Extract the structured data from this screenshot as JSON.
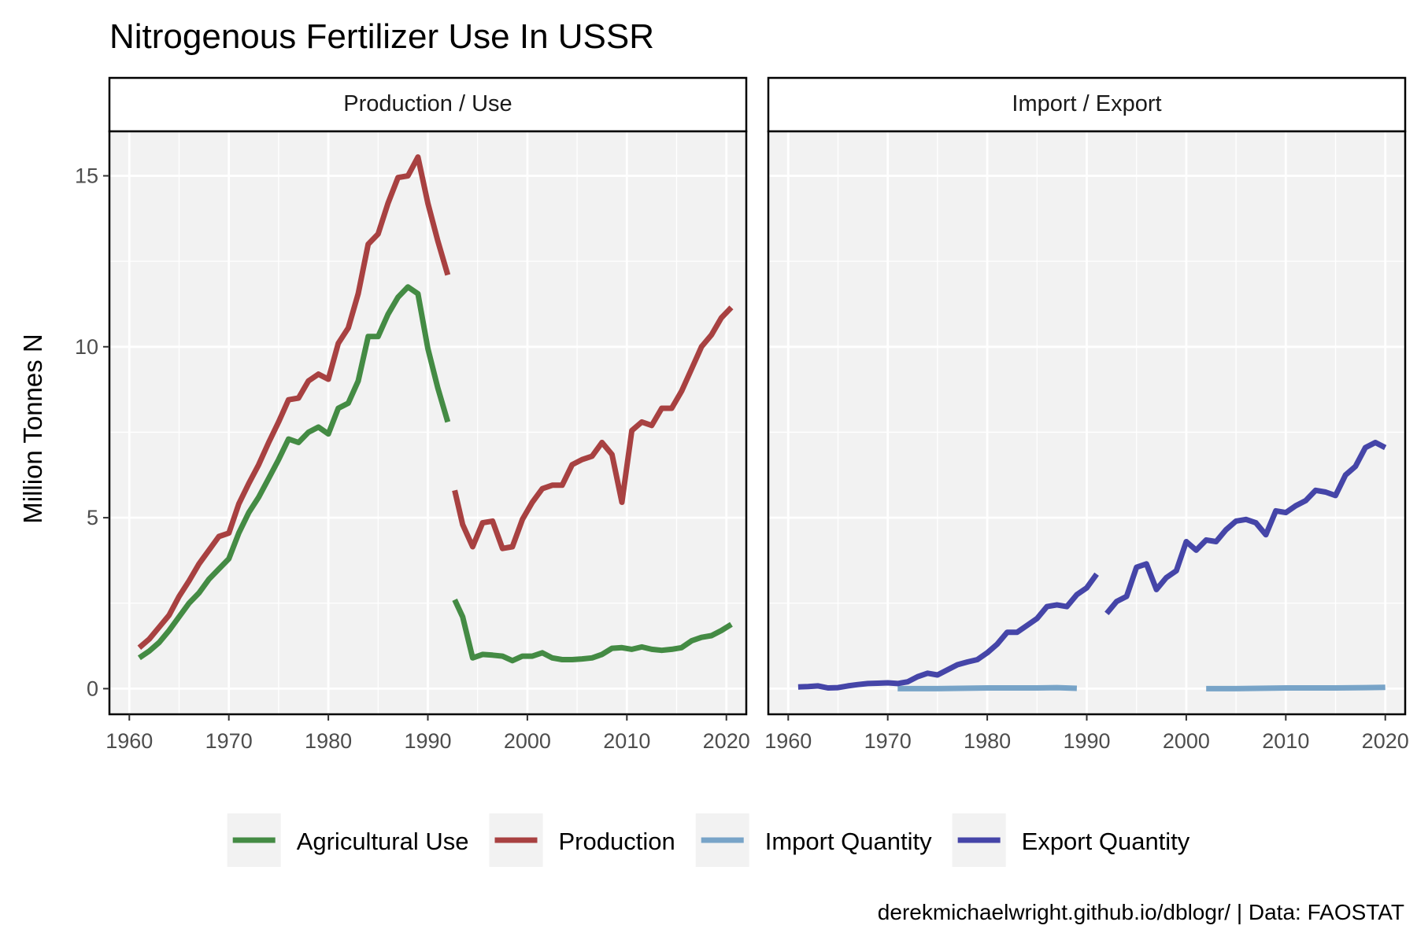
{
  "chart_data": {
    "type": "line",
    "title": "Nitrogenous Fertilizer Use In USSR",
    "ylabel": "Million Tonnes N",
    "xlabel": "",
    "caption": "derekmichaelwright.github.io/dblogr/ | Data: FAOSTAT",
    "xlim": [
      1958,
      2022
    ],
    "ylim": [
      -0.75,
      16.3
    ],
    "x_ticks": [
      1960,
      1970,
      1980,
      1990,
      2000,
      2010,
      2020
    ],
    "y_ticks": [
      0,
      5,
      10,
      15
    ],
    "grid": true,
    "legend_position": "bottom",
    "legend": [
      {
        "name": "Agricultural Use",
        "color": "#448b44"
      },
      {
        "name": "Production",
        "color": "#a84141"
      },
      {
        "name": "Import Quantity",
        "color": "#78a4c8"
      },
      {
        "name": "Export Quantity",
        "color": "#4545a8"
      }
    ],
    "panels": [
      {
        "strip": "Production / Use",
        "series": [
          {
            "name": "Agricultural Use",
            "color": "#448b44",
            "segments": [
              [
                [
                  1961,
                  0.9
                ],
                [
                  1962,
                  1.1
                ],
                [
                  1963,
                  1.35
                ],
                [
                  1964,
                  1.7
                ],
                [
                  1965,
                  2.1
                ],
                [
                  1966,
                  2.5
                ],
                [
                  1967,
                  2.8
                ],
                [
                  1968,
                  3.2
                ],
                [
                  1969,
                  3.5
                ],
                [
                  1970,
                  3.8
                ],
                [
                  1971,
                  4.55
                ],
                [
                  1972,
                  5.15
                ],
                [
                  1973,
                  5.6
                ],
                [
                  1974,
                  6.15
                ],
                [
                  1975,
                  6.7
                ],
                [
                  1976,
                  7.3
                ],
                [
                  1977,
                  7.2
                ],
                [
                  1978,
                  7.5
                ],
                [
                  1979,
                  7.65
                ],
                [
                  1980,
                  7.45
                ],
                [
                  1981,
                  8.2
                ],
                [
                  1982,
                  8.35
                ],
                [
                  1983,
                  9.0
                ],
                [
                  1984,
                  10.3
                ],
                [
                  1985,
                  10.3
                ],
                [
                  1986,
                  10.95
                ],
                [
                  1987,
                  11.45
                ],
                [
                  1988,
                  11.75
                ],
                [
                  1989,
                  11.55
                ],
                [
                  1990,
                  9.95
                ],
                [
                  1991,
                  8.8
                ],
                [
                  1992,
                  7.8
                ]
              ],
              [
                [
                  1992.7,
                  2.6
                ],
                [
                  1993.5,
                  2.1
                ],
                [
                  1994.5,
                  0.9
                ],
                [
                  1995.5,
                  1.0
                ],
                [
                  1996.5,
                  0.98
                ],
                [
                  1997.5,
                  0.95
                ],
                [
                  1998.5,
                  0.82
                ],
                [
                  1999.5,
                  0.95
                ],
                [
                  2000.5,
                  0.95
                ],
                [
                  2001.5,
                  1.05
                ],
                [
                  2002.5,
                  0.9
                ],
                [
                  2003.5,
                  0.85
                ],
                [
                  2004.5,
                  0.85
                ],
                [
                  2005.5,
                  0.87
                ],
                [
                  2006.5,
                  0.9
                ],
                [
                  2007.5,
                  1.0
                ],
                [
                  2008.5,
                  1.18
                ],
                [
                  2009.5,
                  1.2
                ],
                [
                  2010.5,
                  1.15
                ],
                [
                  2011.5,
                  1.22
                ],
                [
                  2012.5,
                  1.15
                ],
                [
                  2013.5,
                  1.12
                ],
                [
                  2014.5,
                  1.15
                ],
                [
                  2015.5,
                  1.2
                ],
                [
                  2016.5,
                  1.4
                ],
                [
                  2017.5,
                  1.5
                ],
                [
                  2018.5,
                  1.55
                ],
                [
                  2019.5,
                  1.7
                ],
                [
                  2020.5,
                  1.88
                ]
              ]
            ]
          },
          {
            "name": "Production",
            "color": "#a84141",
            "segments": [
              [
                [
                  1961,
                  1.2
                ],
                [
                  1962,
                  1.45
                ],
                [
                  1963,
                  1.8
                ],
                [
                  1964,
                  2.15
                ],
                [
                  1965,
                  2.7
                ],
                [
                  1966,
                  3.15
                ],
                [
                  1967,
                  3.65
                ],
                [
                  1968,
                  4.05
                ],
                [
                  1969,
                  4.45
                ],
                [
                  1970,
                  4.55
                ],
                [
                  1971,
                  5.4
                ],
                [
                  1972,
                  6.0
                ],
                [
                  1973,
                  6.55
                ],
                [
                  1974,
                  7.2
                ],
                [
                  1975,
                  7.8
                ],
                [
                  1976,
                  8.45
                ],
                [
                  1977,
                  8.5
                ],
                [
                  1978,
                  9.0
                ],
                [
                  1979,
                  9.2
                ],
                [
                  1980,
                  9.05
                ],
                [
                  1981,
                  10.1
                ],
                [
                  1982,
                  10.55
                ],
                [
                  1983,
                  11.55
                ],
                [
                  1984,
                  13.0
                ],
                [
                  1985,
                  13.3
                ],
                [
                  1986,
                  14.2
                ],
                [
                  1987,
                  14.95
                ],
                [
                  1988,
                  15.0
                ],
                [
                  1989,
                  15.55
                ],
                [
                  1990,
                  14.2
                ],
                [
                  1991,
                  13.1
                ],
                [
                  1992,
                  12.1
                ]
              ],
              [
                [
                  1992.7,
                  5.8
                ],
                [
                  1993.5,
                  4.8
                ],
                [
                  1994.5,
                  4.15
                ],
                [
                  1995.5,
                  4.85
                ],
                [
                  1996.5,
                  4.9
                ],
                [
                  1997.5,
                  4.1
                ],
                [
                  1998.5,
                  4.15
                ],
                [
                  1999.5,
                  4.95
                ],
                [
                  2000.5,
                  5.45
                ],
                [
                  2001.5,
                  5.85
                ],
                [
                  2002.5,
                  5.95
                ],
                [
                  2003.5,
                  5.95
                ],
                [
                  2004.5,
                  6.55
                ],
                [
                  2005.5,
                  6.7
                ],
                [
                  2006.5,
                  6.8
                ],
                [
                  2007.5,
                  7.2
                ],
                [
                  2008.5,
                  6.85
                ],
                [
                  2009.5,
                  5.45
                ],
                [
                  2010.5,
                  7.55
                ],
                [
                  2011.5,
                  7.8
                ],
                [
                  2012.5,
                  7.7
                ],
                [
                  2013.5,
                  8.2
                ],
                [
                  2014.5,
                  8.2
                ],
                [
                  2015.5,
                  8.7
                ],
                [
                  2016.5,
                  9.35
                ],
                [
                  2017.5,
                  10.0
                ],
                [
                  2018.5,
                  10.35
                ],
                [
                  2019.5,
                  10.85
                ],
                [
                  2020.5,
                  11.15
                ]
              ]
            ]
          }
        ]
      },
      {
        "strip": "Import / Export",
        "series": [
          {
            "name": "Import Quantity",
            "color": "#78a4c8",
            "segments": [
              [
                [
                  1971,
                  0.0
                ],
                [
                  1975,
                  0.0
                ],
                [
                  1980,
                  0.02
                ],
                [
                  1985,
                  0.02
                ],
                [
                  1987,
                  0.03
                ],
                [
                  1989,
                  0.01
                ]
              ],
              [
                [
                  2002,
                  0.0
                ],
                [
                  2005,
                  0.0
                ],
                [
                  2010,
                  0.02
                ],
                [
                  2015,
                  0.02
                ],
                [
                  2018,
                  0.03
                ],
                [
                  2020,
                  0.04
                ]
              ]
            ]
          },
          {
            "name": "Export Quantity",
            "color": "#4545a8",
            "segments": [
              [
                [
                  1961,
                  0.05
                ],
                [
                  1962,
                  0.06
                ],
                [
                  1963,
                  0.08
                ],
                [
                  1964,
                  0.02
                ],
                [
                  1965,
                  0.03
                ],
                [
                  1966,
                  0.08
                ],
                [
                  1967,
                  0.12
                ],
                [
                  1968,
                  0.15
                ],
                [
                  1969,
                  0.16
                ],
                [
                  1970,
                  0.17
                ],
                [
                  1971,
                  0.15
                ],
                [
                  1972,
                  0.2
                ],
                [
                  1973,
                  0.35
                ],
                [
                  1974,
                  0.45
                ],
                [
                  1975,
                  0.4
                ],
                [
                  1976,
                  0.55
                ],
                [
                  1977,
                  0.7
                ],
                [
                  1978,
                  0.78
                ],
                [
                  1979,
                  0.85
                ],
                [
                  1980,
                  1.05
                ],
                [
                  1981,
                  1.3
                ],
                [
                  1982,
                  1.65
                ],
                [
                  1983,
                  1.65
                ],
                [
                  1984,
                  1.85
                ],
                [
                  1985,
                  2.05
                ],
                [
                  1986,
                  2.4
                ],
                [
                  1987,
                  2.45
                ],
                [
                  1988,
                  2.4
                ],
                [
                  1989,
                  2.75
                ],
                [
                  1990,
                  2.95
                ],
                [
                  1991,
                  3.35
                ]
              ],
              [
                [
                  1992,
                  2.2
                ],
                [
                  1993,
                  2.55
                ],
                [
                  1994,
                  2.7
                ],
                [
                  1995,
                  3.55
                ],
                [
                  1996,
                  3.65
                ],
                [
                  1997,
                  2.9
                ],
                [
                  1998,
                  3.25
                ],
                [
                  1999,
                  3.45
                ],
                [
                  2000,
                  4.3
                ],
                [
                  2001,
                  4.05
                ],
                [
                  2002,
                  4.35
                ],
                [
                  2003,
                  4.3
                ],
                [
                  2004,
                  4.65
                ],
                [
                  2005,
                  4.9
                ],
                [
                  2006,
                  4.95
                ],
                [
                  2007,
                  4.85
                ],
                [
                  2008,
                  4.5
                ],
                [
                  2009,
                  5.2
                ],
                [
                  2010,
                  5.15
                ],
                [
                  2011,
                  5.35
                ],
                [
                  2012,
                  5.5
                ],
                [
                  2013,
                  5.8
                ],
                [
                  2014,
                  5.75
                ],
                [
                  2015,
                  5.65
                ],
                [
                  2016,
                  6.25
                ],
                [
                  2017,
                  6.5
                ],
                [
                  2018,
                  7.05
                ],
                [
                  2019,
                  7.2
                ],
                [
                  2020,
                  7.05
                ]
              ]
            ]
          }
        ]
      }
    ]
  }
}
